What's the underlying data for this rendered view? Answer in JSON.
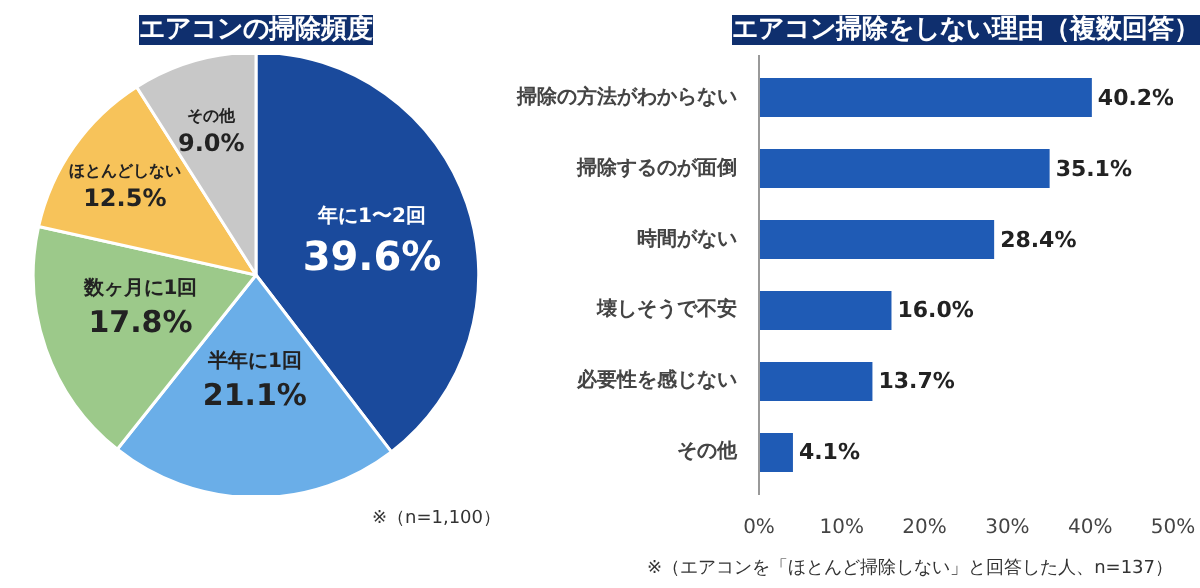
{
  "chart_data": [
    {
      "type": "pie",
      "title": "エアコンの掃除頻度",
      "categories": [
        "年に1〜2回",
        "半年に1回",
        "数ヶ月に1回",
        "ほとんどしない",
        "その他"
      ],
      "values": [
        39.6,
        21.1,
        17.8,
        12.5,
        9.0
      ],
      "value_labels": [
        "39.6%",
        "21.1%",
        "17.8%",
        "12.5%",
        "9.0%"
      ],
      "colors": [
        "#1a4a9c",
        "#6aaee8",
        "#9cc98a",
        "#f7c35a",
        "#c8c8c8"
      ],
      "annotations": [
        "※（n=1,100）"
      ],
      "legend": false
    },
    {
      "type": "bar",
      "orientation": "horizontal",
      "title": "エアコン掃除をしない理由（複数回答）",
      "categories": [
        "掃除の方法がわからない",
        "掃除するのが面倒",
        "時間がない",
        "壊しそうで不安",
        "必要性を感じない",
        "その他"
      ],
      "values": [
        40.2,
        35.1,
        28.4,
        16.0,
        13.7,
        4.1
      ],
      "value_labels": [
        "40.2%",
        "35.1%",
        "28.4%",
        "16.0%",
        "13.7%",
        "4.1%"
      ],
      "color": "#1f5bb5",
      "xlim": [
        0,
        50
      ],
      "xticks": [
        {
          "value": 0,
          "label": "0%"
        },
        {
          "value": 10,
          "label": "10%"
        },
        {
          "value": 20,
          "label": "20%"
        },
        {
          "value": 30,
          "label": "30%"
        },
        {
          "value": 40,
          "label": "40%"
        },
        {
          "value": 50,
          "label": "50%"
        }
      ],
      "grid": false,
      "annotations": [
        "※（エアコンを「ほとんど掃除しない」と回答した人、n=137）"
      ]
    }
  ]
}
